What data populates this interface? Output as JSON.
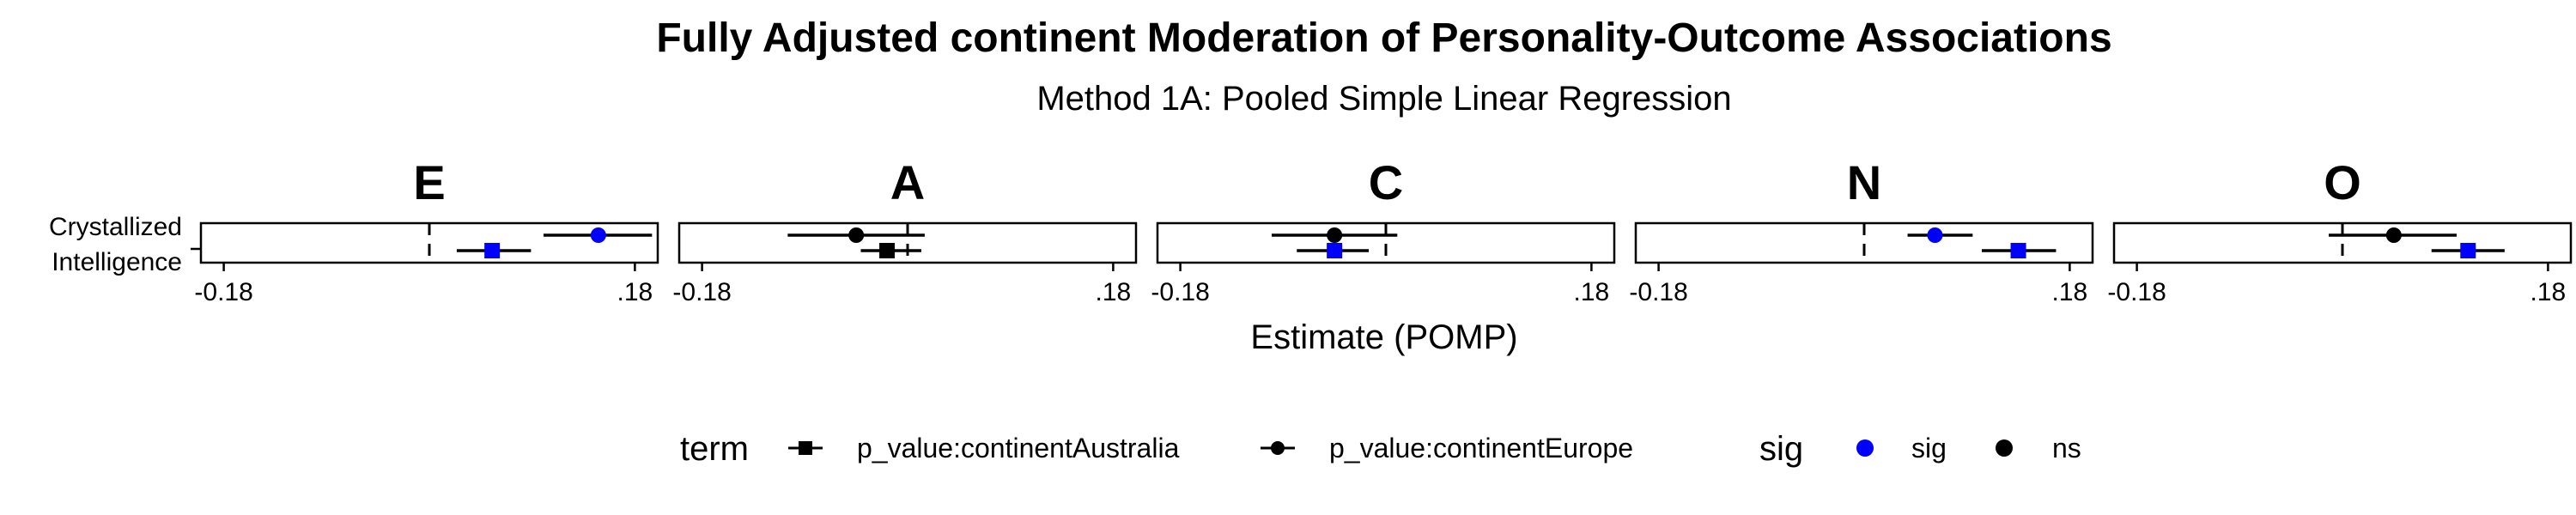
{
  "chart_data": {
    "type": "scatter",
    "title": "Fully Adjusted continent Moderation of Personality-Outcome Associations",
    "subtitle": "Method 1A: Pooled Simple Linear Regression",
    "xlabel": "Estimate (POMP)",
    "ylabel": "",
    "xlim": [
      -0.2,
      0.2
    ],
    "x_ticks": [
      -0.18,
      0.18
    ],
    "x_tick_labels": [
      "-0.18",
      ".18"
    ],
    "reference_line": 0,
    "outcome_label_lines": [
      "Crystallized",
      "Intelligence"
    ],
    "panels": [
      {
        "facet": "E",
        "points": [
          {
            "term": "p_value:continentEurope",
            "sig": "sig",
            "estimate": 0.148,
            "ci": [
              0.1,
              0.195
            ]
          },
          {
            "term": "p_value:continentAustralia",
            "sig": "sig",
            "estimate": 0.055,
            "ci": [
              0.024,
              0.089
            ]
          }
        ]
      },
      {
        "facet": "A",
        "points": [
          {
            "term": "p_value:continentEurope",
            "sig": "ns",
            "estimate": -0.045,
            "ci": [
              -0.105,
              0.015
            ]
          },
          {
            "term": "p_value:continentAustralia",
            "sig": "ns",
            "estimate": -0.018,
            "ci": [
              -0.041,
              0.012
            ]
          }
        ]
      },
      {
        "facet": "C",
        "points": [
          {
            "term": "p_value:continentEurope",
            "sig": "ns",
            "estimate": -0.045,
            "ci": [
              -0.1,
              0.01
            ]
          },
          {
            "term": "p_value:continentAustralia",
            "sig": "sig",
            "estimate": -0.045,
            "ci": [
              -0.078,
              -0.015
            ]
          }
        ]
      },
      {
        "facet": "N",
        "points": [
          {
            "term": "p_value:continentEurope",
            "sig": "sig",
            "estimate": 0.062,
            "ci": [
              0.038,
              0.095
            ]
          },
          {
            "term": "p_value:continentAustralia",
            "sig": "sig",
            "estimate": 0.135,
            "ci": [
              0.103,
              0.168
            ]
          }
        ]
      },
      {
        "facet": "O",
        "points": [
          {
            "term": "p_value:continentEurope",
            "sig": "ns",
            "estimate": 0.045,
            "ci": [
              -0.012,
              0.1
            ]
          },
          {
            "term": "p_value:continentAustralia",
            "sig": "sig",
            "estimate": 0.11,
            "ci": [
              0.078,
              0.142
            ]
          }
        ]
      }
    ],
    "legends": [
      {
        "title": "term",
        "entries": [
          {
            "label": "p_value:continentAustralia",
            "shape": "square"
          },
          {
            "label": "p_value:continentEurope",
            "shape": "circle"
          }
        ]
      },
      {
        "title": "sig",
        "entries": [
          {
            "label": "sig",
            "color": "#0000ff"
          },
          {
            "label": "ns",
            "color": "#000000"
          }
        ]
      }
    ],
    "legend_position": "bottom",
    "grid": false
  }
}
